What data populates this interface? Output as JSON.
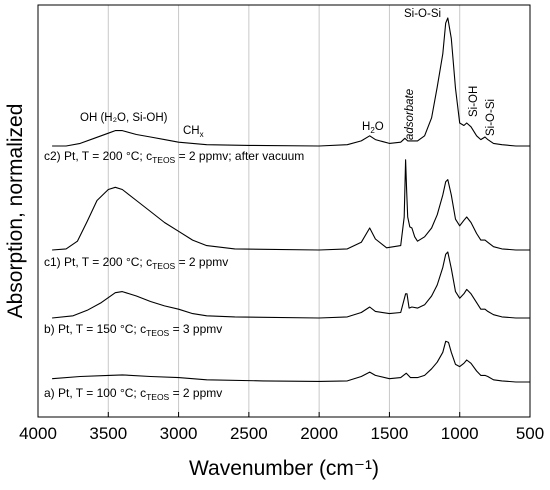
{
  "chart_data": {
    "type": "line",
    "title": "",
    "xlabel": "Wavenumber (cm⁻¹)",
    "ylabel": "Absorption, normalized",
    "xlim": [
      4000,
      500
    ],
    "x_reversed": true,
    "grid": "vertical",
    "xticks": [
      {
        "value": 4000,
        "label": "4000"
      },
      {
        "value": 3500,
        "label": "3500"
      },
      {
        "value": 3000,
        "label": "3000"
      },
      {
        "value": 2500,
        "label": "2500"
      },
      {
        "value": 2000,
        "label": "2000"
      },
      {
        "value": 1500,
        "label": "1500"
      },
      {
        "value": 1000,
        "label": "1000"
      },
      {
        "value": 500,
        "label": "500"
      }
    ],
    "y_ticks_shown": false,
    "series": [
      {
        "label_parts": [
          "a) Pt, T = 100 °C; c",
          "TEOS",
          " = 2 ppmv"
        ],
        "baseline": 0.0,
        "points": [
          [
            3900,
            0.03
          ],
          [
            3700,
            0.05
          ],
          [
            3500,
            0.06
          ],
          [
            3400,
            0.065
          ],
          [
            3200,
            0.05
          ],
          [
            3000,
            0.04
          ],
          [
            2800,
            0.02
          ],
          [
            2400,
            0.01
          ],
          [
            2000,
            0.005
          ],
          [
            1800,
            0.01
          ],
          [
            1700,
            0.05
          ],
          [
            1640,
            0.09
          ],
          [
            1600,
            0.06
          ],
          [
            1500,
            0.03
          ],
          [
            1420,
            0.04
          ],
          [
            1380,
            0.08
          ],
          [
            1350,
            0.04
          ],
          [
            1300,
            0.04
          ],
          [
            1250,
            0.06
          ],
          [
            1200,
            0.12
          ],
          [
            1160,
            0.18
          ],
          [
            1120,
            0.27
          ],
          [
            1100,
            0.37
          ],
          [
            1080,
            0.36
          ],
          [
            1060,
            0.27
          ],
          [
            1030,
            0.16
          ],
          [
            1000,
            0.14
          ],
          [
            970,
            0.17
          ],
          [
            950,
            0.2
          ],
          [
            920,
            0.17
          ],
          [
            880,
            0.1
          ],
          [
            850,
            0.06
          ],
          [
            820,
            0.06
          ],
          [
            800,
            0.05
          ],
          [
            760,
            0.02
          ],
          [
            700,
            0.01
          ],
          [
            600,
            0.0
          ],
          [
            500,
            0.0
          ]
        ]
      },
      {
        "label_parts": [
          "b) Pt, T = 150 °C; c",
          "TEOS",
          " = 3 ppmv"
        ],
        "baseline": 0.0,
        "points": [
          [
            3900,
            0.0
          ],
          [
            3750,
            0.02
          ],
          [
            3650,
            0.07
          ],
          [
            3550,
            0.14
          ],
          [
            3450,
            0.23
          ],
          [
            3400,
            0.24
          ],
          [
            3300,
            0.2
          ],
          [
            3200,
            0.15
          ],
          [
            3100,
            0.11
          ],
          [
            3000,
            0.08
          ],
          [
            2900,
            0.04
          ],
          [
            2800,
            0.02
          ],
          [
            2600,
            0.01
          ],
          [
            2000,
            0.0
          ],
          [
            1800,
            0.01
          ],
          [
            1700,
            0.05
          ],
          [
            1640,
            0.1
          ],
          [
            1600,
            0.06
          ],
          [
            1500,
            0.04
          ],
          [
            1420,
            0.05
          ],
          [
            1385,
            0.22
          ],
          [
            1375,
            0.22
          ],
          [
            1360,
            0.09
          ],
          [
            1340,
            0.1
          ],
          [
            1300,
            0.09
          ],
          [
            1250,
            0.12
          ],
          [
            1200,
            0.2
          ],
          [
            1160,
            0.3
          ],
          [
            1120,
            0.46
          ],
          [
            1100,
            0.58
          ],
          [
            1085,
            0.6
          ],
          [
            1060,
            0.45
          ],
          [
            1030,
            0.24
          ],
          [
            1000,
            0.18
          ],
          [
            970,
            0.22
          ],
          [
            950,
            0.26
          ],
          [
            920,
            0.22
          ],
          [
            880,
            0.14
          ],
          [
            850,
            0.08
          ],
          [
            820,
            0.08
          ],
          [
            800,
            0.06
          ],
          [
            760,
            0.03
          ],
          [
            700,
            0.01
          ],
          [
            600,
            0.0
          ],
          [
            500,
            0.0
          ]
        ]
      },
      {
        "label_parts": [
          "c1) Pt, T = 200 °C; c",
          "TEOS",
          " = 2 ppmv"
        ],
        "baseline": 0.0,
        "points": [
          [
            3900,
            0.0
          ],
          [
            3800,
            0.01
          ],
          [
            3720,
            0.08
          ],
          [
            3650,
            0.26
          ],
          [
            3580,
            0.45
          ],
          [
            3500,
            0.55
          ],
          [
            3450,
            0.57
          ],
          [
            3400,
            0.55
          ],
          [
            3300,
            0.45
          ],
          [
            3200,
            0.35
          ],
          [
            3100,
            0.25
          ],
          [
            3000,
            0.17
          ],
          [
            2900,
            0.09
          ],
          [
            2800,
            0.04
          ],
          [
            2600,
            0.01
          ],
          [
            2000,
            0.0
          ],
          [
            1800,
            0.01
          ],
          [
            1700,
            0.07
          ],
          [
            1640,
            0.2
          ],
          [
            1600,
            0.1
          ],
          [
            1520,
            0.02
          ],
          [
            1420,
            0.04
          ],
          [
            1395,
            0.3
          ],
          [
            1385,
            0.82
          ],
          [
            1378,
            0.55
          ],
          [
            1370,
            0.3
          ],
          [
            1355,
            0.21
          ],
          [
            1340,
            0.2
          ],
          [
            1320,
            0.12
          ],
          [
            1300,
            0.08
          ],
          [
            1250,
            0.12
          ],
          [
            1200,
            0.2
          ],
          [
            1160,
            0.32
          ],
          [
            1120,
            0.5
          ],
          [
            1100,
            0.62
          ],
          [
            1085,
            0.64
          ],
          [
            1060,
            0.5
          ],
          [
            1030,
            0.28
          ],
          [
            1000,
            0.22
          ],
          [
            970,
            0.27
          ],
          [
            950,
            0.3
          ],
          [
            920,
            0.25
          ],
          [
            880,
            0.15
          ],
          [
            850,
            0.09
          ],
          [
            820,
            0.09
          ],
          [
            800,
            0.07
          ],
          [
            760,
            0.03
          ],
          [
            700,
            0.01
          ],
          [
            600,
            0.0
          ],
          [
            500,
            0.0
          ]
        ]
      },
      {
        "label_parts": [
          "c2) Pt, T = 200 °C; c",
          "TEOS",
          " = 2 ppmv; after vacuum"
        ],
        "baseline": 0.0,
        "points": [
          [
            3900,
            0.0
          ],
          [
            3800,
            0.0
          ],
          [
            3700,
            0.02
          ],
          [
            3600,
            0.06
          ],
          [
            3500,
            0.1
          ],
          [
            3450,
            0.12
          ],
          [
            3400,
            0.12
          ],
          [
            3300,
            0.09
          ],
          [
            3200,
            0.07
          ],
          [
            3100,
            0.05
          ],
          [
            3000,
            0.03
          ],
          [
            2900,
            0.02
          ],
          [
            2800,
            0.01
          ],
          [
            2500,
            0.005
          ],
          [
            2000,
            0.0
          ],
          [
            1800,
            0.01
          ],
          [
            1700,
            0.04
          ],
          [
            1640,
            0.08
          ],
          [
            1600,
            0.05
          ],
          [
            1500,
            0.02
          ],
          [
            1420,
            0.03
          ],
          [
            1390,
            0.06
          ],
          [
            1370,
            0.04
          ],
          [
            1300,
            0.04
          ],
          [
            1250,
            0.08
          ],
          [
            1200,
            0.22
          ],
          [
            1160,
            0.46
          ],
          [
            1120,
            0.72
          ],
          [
            1100,
            0.96
          ],
          [
            1085,
            1.0
          ],
          [
            1060,
            0.84
          ],
          [
            1030,
            0.45
          ],
          [
            1000,
            0.18
          ],
          [
            970,
            0.16
          ],
          [
            950,
            0.18
          ],
          [
            920,
            0.15
          ],
          [
            880,
            0.08
          ],
          [
            850,
            0.05
          ],
          [
            820,
            0.07
          ],
          [
            800,
            0.05
          ],
          [
            760,
            0.02
          ],
          [
            700,
            0.01
          ],
          [
            600,
            0.0
          ],
          [
            500,
            0.0
          ]
        ]
      }
    ],
    "annotations": {
      "oh": "OH (H₂O, Si-OH)",
      "chx": [
        "CH",
        "x"
      ],
      "h2o": [
        "H",
        "2",
        "O"
      ],
      "adsorbate": "adsorbate",
      "siosi_top": "Si-O-Si",
      "sioh": "Si-OH",
      "siosi_right": "Si-O-Si"
    }
  }
}
